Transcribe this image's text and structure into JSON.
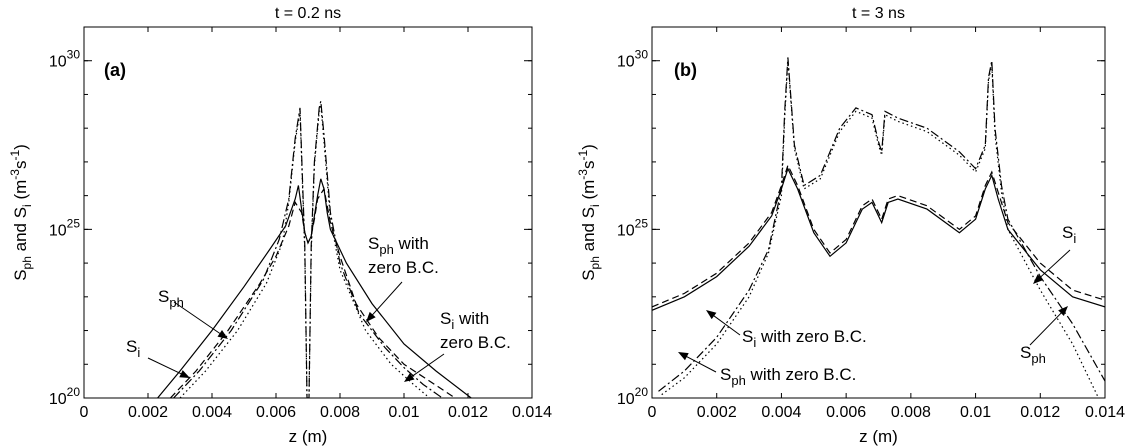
{
  "chart_data": [
    {
      "type": "line",
      "panel": "(a)",
      "title": "t = 0.2 ns",
      "xlabel": "z (m)",
      "ylabel": "S_ph and S_i (m^-3 s^-1)",
      "ylabel_parts": {
        "a": "S",
        "b": "ph",
        "c": " and S",
        "d": "i",
        "e": " (m",
        "f": "-3",
        "g": "s",
        "h": "-1",
        "i": ")"
      },
      "xlim": [
        0,
        0.014
      ],
      "ylim": [
        1e+20,
        1e+31
      ],
      "yscale": "log",
      "xticks": [
        "0",
        "0.002",
        "0.004",
        "0.006",
        "0.008",
        "0.01",
        "0.012",
        "0.014"
      ],
      "yticks": [
        {
          "base": "10",
          "exp": "20"
        },
        {
          "base": "10",
          "exp": "25"
        },
        {
          "base": "10",
          "exp": "30"
        }
      ],
      "annotations": [
        {
          "main": "S",
          "sub": "ph",
          "tail": ""
        },
        {
          "main": "S",
          "sub": "i",
          "tail": ""
        },
        {
          "main": "S",
          "sub": "ph",
          "tail": " with",
          "line2": "zero B.C."
        },
        {
          "main": "S",
          "sub": "i",
          "tail": " with",
          "line2": "zero B.C."
        }
      ],
      "series": [
        {
          "style": "solid",
          "x": [
            0.0023,
            0.003,
            0.004,
            0.005,
            0.0058,
            0.0063,
            0.0066,
            0.0067,
            0.0068,
            0.0069,
            0.007,
            0.0071,
            0.0072,
            0.0073,
            0.0074,
            0.0075,
            0.0076,
            0.0077,
            0.0082,
            0.009,
            0.01,
            0.011,
            0.0121
          ],
          "logy": [
            20,
            20.8,
            22,
            23.3,
            24.4,
            25.1,
            25.9,
            26.3,
            25.6,
            24.9,
            24.6,
            24.8,
            25.4,
            26.0,
            26.5,
            26.2,
            25.5,
            25.0,
            24.0,
            22.8,
            21.6,
            20.8,
            20
          ]
        },
        {
          "style": "dashed",
          "x": [
            0.0027,
            0.0035,
            0.0045,
            0.0055,
            0.006,
            0.0064,
            0.0066,
            0.0068,
            0.0069,
            0.007,
            0.0071,
            0.0072,
            0.0073,
            0.0075,
            0.0077,
            0.008,
            0.0085,
            0.0092,
            0.01,
            0.0108,
            0.0116
          ],
          "logy": [
            20,
            20.8,
            22,
            23.4,
            24.2,
            25.1,
            25.8,
            25.5,
            24.9,
            24.6,
            24.8,
            25.3,
            25.9,
            26.2,
            25.2,
            24.2,
            22.8,
            21.8,
            21.0,
            20.5,
            20
          ]
        },
        {
          "style": "dashdot",
          "x": [
            0.0028,
            0.0036,
            0.0046,
            0.0056,
            0.0061,
            0.0064,
            0.0066,
            0.00675,
            0.0069,
            0.00697,
            0.00703,
            0.0071,
            0.0072,
            0.00735,
            0.0074,
            0.0075,
            0.0077,
            0.008,
            0.0086,
            0.0094,
            0.01,
            0.0106,
            0.0112
          ],
          "logy": [
            20,
            20.8,
            22,
            23.5,
            24.7,
            25.9,
            27.7,
            28.6,
            24.5,
            20,
            20,
            24.5,
            27.0,
            28.6,
            28.8,
            27.8,
            25.5,
            24.0,
            22.5,
            21.5,
            20.9,
            20.4,
            20
          ]
        },
        {
          "style": "dotted",
          "x": [
            0.003,
            0.0038,
            0.0048,
            0.0057,
            0.0062,
            0.0064,
            0.0066,
            0.00675,
            0.0069,
            0.00697,
            0.00703,
            0.0071,
            0.0072,
            0.00735,
            0.0074,
            0.0075,
            0.0077,
            0.008,
            0.0088,
            0.0096,
            0.0103,
            0.0108
          ],
          "logy": [
            20,
            20.8,
            22,
            23.4,
            24.6,
            25.8,
            27.6,
            28.5,
            24.3,
            20,
            20,
            24.3,
            26.9,
            28.5,
            28.7,
            27.6,
            25.3,
            23.8,
            22.0,
            21.0,
            20.4,
            20
          ]
        }
      ]
    },
    {
      "type": "line",
      "panel": "(b)",
      "title": "t = 3 ns",
      "xlabel": "z (m)",
      "ylabel": "S_ph and S_i (m^-3 s^-1)",
      "ylabel_parts": {
        "a": "S",
        "b": "ph",
        "c": " and S",
        "d": "i",
        "e": " (m",
        "f": "-3",
        "g": "s",
        "h": "-1",
        "i": ")"
      },
      "xlim": [
        0,
        0.014
      ],
      "ylim": [
        1e+20,
        1e+31
      ],
      "yscale": "log",
      "xticks": [
        "0",
        "0.002",
        "0.004",
        "0.006",
        "0.008",
        "0.01",
        "0.012",
        "0.014"
      ],
      "yticks": [
        {
          "base": "10",
          "exp": "20"
        },
        {
          "base": "10",
          "exp": "25"
        },
        {
          "base": "10",
          "exp": "30"
        }
      ],
      "annotations": [
        {
          "main": "S",
          "sub": "i",
          "tail": ""
        },
        {
          "main": "S",
          "sub": "ph",
          "tail": ""
        },
        {
          "main": "S",
          "sub": "i",
          "tail": " with zero B.C.",
          "line2": ""
        },
        {
          "main": "S",
          "sub": "ph",
          "tail": " with zero B.C.",
          "line2": ""
        }
      ],
      "series": [
        {
          "style": "solid",
          "x": [
            0,
            0.001,
            0.002,
            0.003,
            0.0037,
            0.004,
            0.0042,
            0.0045,
            0.005,
            0.0055,
            0.006,
            0.0065,
            0.0068,
            0.0071,
            0.0073,
            0.0076,
            0.0085,
            0.0095,
            0.01,
            0.0103,
            0.0105,
            0.0107,
            0.011,
            0.012,
            0.013,
            0.014
          ],
          "logy": [
            22.6,
            23.0,
            23.6,
            24.5,
            25.4,
            26.2,
            26.8,
            26.2,
            24.9,
            24.2,
            24.6,
            25.6,
            25.8,
            25.2,
            25.8,
            25.9,
            25.6,
            24.9,
            25.3,
            26.2,
            26.6,
            25.9,
            25.0,
            23.8,
            23.0,
            22.7
          ]
        },
        {
          "style": "dashed",
          "x": [
            0,
            0.001,
            0.002,
            0.003,
            0.0037,
            0.004,
            0.0042,
            0.0045,
            0.005,
            0.0055,
            0.006,
            0.0065,
            0.0068,
            0.0071,
            0.0073,
            0.0076,
            0.0085,
            0.0095,
            0.01,
            0.0103,
            0.0105,
            0.0107,
            0.011,
            0.012,
            0.013,
            0.014
          ],
          "logy": [
            22.7,
            23.1,
            23.7,
            24.6,
            25.5,
            26.3,
            26.9,
            26.3,
            25.0,
            24.3,
            24.7,
            25.7,
            25.9,
            25.3,
            25.9,
            26.0,
            25.7,
            25.0,
            25.4,
            26.3,
            26.7,
            26.1,
            25.2,
            24.0,
            23.2,
            22.9
          ]
        },
        {
          "style": "dashdot",
          "x": [
            0.0002,
            0.001,
            0.002,
            0.003,
            0.0036,
            0.004,
            0.0041,
            0.0042,
            0.0044,
            0.0047,
            0.0052,
            0.0058,
            0.0063,
            0.0068,
            0.007,
            0.0071,
            0.0072,
            0.0076,
            0.0085,
            0.0095,
            0.01,
            0.0103,
            0.0104,
            0.0105,
            0.0106,
            0.0108,
            0.011,
            0.012,
            0.013,
            0.014
          ],
          "logy": [
            20.2,
            20.8,
            21.8,
            23.2,
            24.4,
            26.2,
            28.5,
            30.1,
            27.5,
            26.3,
            26.6,
            28.0,
            28.6,
            28.4,
            27.6,
            27.3,
            28.5,
            28.3,
            28.0,
            27.3,
            26.8,
            27.5,
            29.5,
            30.0,
            28.0,
            26.3,
            25.3,
            23.6,
            22.2,
            20.5
          ]
        },
        {
          "style": "dotted",
          "x": [
            0.0003,
            0.001,
            0.002,
            0.003,
            0.0036,
            0.004,
            0.0041,
            0.0042,
            0.0044,
            0.0047,
            0.0052,
            0.0058,
            0.0063,
            0.0068,
            0.007,
            0.0071,
            0.0072,
            0.0076,
            0.0085,
            0.0095,
            0.01,
            0.0103,
            0.0104,
            0.0105,
            0.0106,
            0.0108,
            0.011,
            0.012,
            0.013,
            0.0138
          ],
          "logy": [
            20.1,
            20.6,
            21.6,
            23.0,
            24.3,
            26.0,
            28.3,
            30.0,
            27.4,
            26.2,
            26.5,
            27.9,
            28.5,
            28.3,
            27.5,
            27.2,
            28.4,
            28.2,
            27.9,
            27.2,
            26.7,
            27.4,
            29.4,
            29.9,
            27.8,
            26.1,
            25.0,
            23.2,
            21.6,
            20.0
          ]
        }
      ]
    }
  ]
}
